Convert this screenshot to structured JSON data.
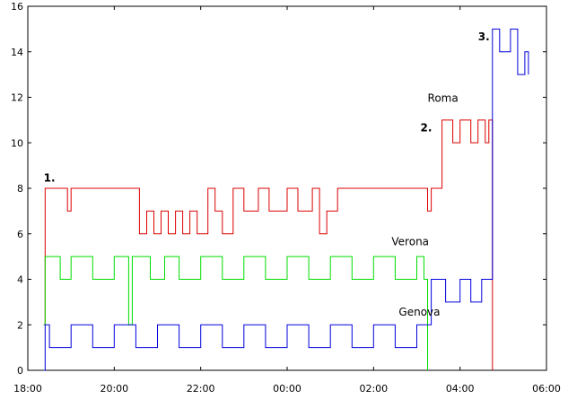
{
  "chart_data": {
    "type": "line",
    "title": "",
    "xlabel": "",
    "ylabel": "",
    "xlim": [
      "18:00",
      "06:00"
    ],
    "ylim": [
      0,
      16
    ],
    "grid": false,
    "x_ticks": [
      "18:00",
      "20:00",
      "22:00",
      "00:00",
      "02:00",
      "04:00",
      "06:00"
    ],
    "y_ticks": [
      "0",
      "2",
      "4",
      "6",
      "8",
      "10",
      "12",
      "14",
      "16"
    ],
    "series": [
      {
        "name": "Roma",
        "color": "#dd0000",
        "x": [
          "18:22",
          "18:24",
          "18:40",
          "18:55",
          "19:00",
          "20:20",
          "20:35",
          "20:45",
          "20:55",
          "21:05",
          "21:15",
          "21:25",
          "21:35",
          "21:45",
          "21:55",
          "22:10",
          "22:20",
          "22:30",
          "22:45",
          "23:00",
          "23:20",
          "23:35",
          "00:00",
          "00:15",
          "00:35",
          "00:45",
          "00:55",
          "01:10",
          "03:00",
          "03:15",
          "03:20",
          "03:35",
          "03:50",
          "04:00",
          "04:15",
          "04:25",
          "04:35",
          "04:40",
          "04:45"
        ],
        "values": [
          2,
          8,
          8,
          7,
          8,
          8,
          6,
          7,
          6,
          7,
          6,
          7,
          6,
          7,
          6,
          8,
          7,
          6,
          8,
          7,
          8,
          7,
          8,
          7,
          8,
          6,
          7,
          8,
          8,
          7,
          8,
          11,
          10,
          11,
          10,
          11,
          10,
          11,
          0
        ]
      },
      {
        "name": "Verona",
        "color": "#00dd00",
        "x": [
          "18:22",
          "18:24",
          "18:45",
          "19:00",
          "19:30",
          "20:00",
          "20:20",
          "20:25",
          "20:50",
          "21:10",
          "21:30",
          "22:00",
          "22:30",
          "23:00",
          "23:30",
          "00:00",
          "00:30",
          "01:00",
          "01:30",
          "02:00",
          "02:30",
          "03:00",
          "03:10",
          "03:15"
        ],
        "values": [
          2,
          5,
          4,
          5,
          4,
          5,
          2,
          5,
          4,
          5,
          4,
          5,
          4,
          5,
          4,
          5,
          4,
          5,
          4,
          5,
          4,
          5,
          4,
          0
        ]
      },
      {
        "name": "Genova",
        "color": "#0000dd",
        "x": [
          "18:22",
          "18:24",
          "18:30",
          "19:00",
          "19:30",
          "20:00",
          "20:30",
          "21:00",
          "21:30",
          "22:00",
          "22:30",
          "23:00",
          "23:30",
          "00:00",
          "00:30",
          "01:00",
          "01:30",
          "02:00",
          "02:30",
          "03:00",
          "03:15",
          "03:20",
          "03:40",
          "04:00",
          "04:15",
          "04:30",
          "04:40",
          "04:45",
          "04:55",
          "05:10",
          "05:20",
          "05:30",
          "05:35"
        ],
        "values": [
          0,
          2,
          1,
          2,
          1,
          2,
          1,
          2,
          1,
          2,
          1,
          2,
          1,
          2,
          1,
          2,
          1,
          2,
          1,
          2,
          2,
          4,
          3,
          4,
          3,
          4,
          4,
          15,
          14,
          15,
          13,
          14,
          13
        ]
      }
    ],
    "series_labels": [
      {
        "text": "Roma",
        "x": "03:15",
        "y": 11.8
      },
      {
        "text": "Verona",
        "x": "02:25",
        "y": 5.5
      },
      {
        "text": "Genova",
        "x": "02:35",
        "y": 2.4
      }
    ],
    "annotations": [
      {
        "text": "1.",
        "x": "18:22",
        "y": 8.3
      },
      {
        "text": "2.",
        "x": "03:05",
        "y": 10.5
      },
      {
        "text": "3.",
        "x": "04:25",
        "y": 14.5
      }
    ]
  }
}
